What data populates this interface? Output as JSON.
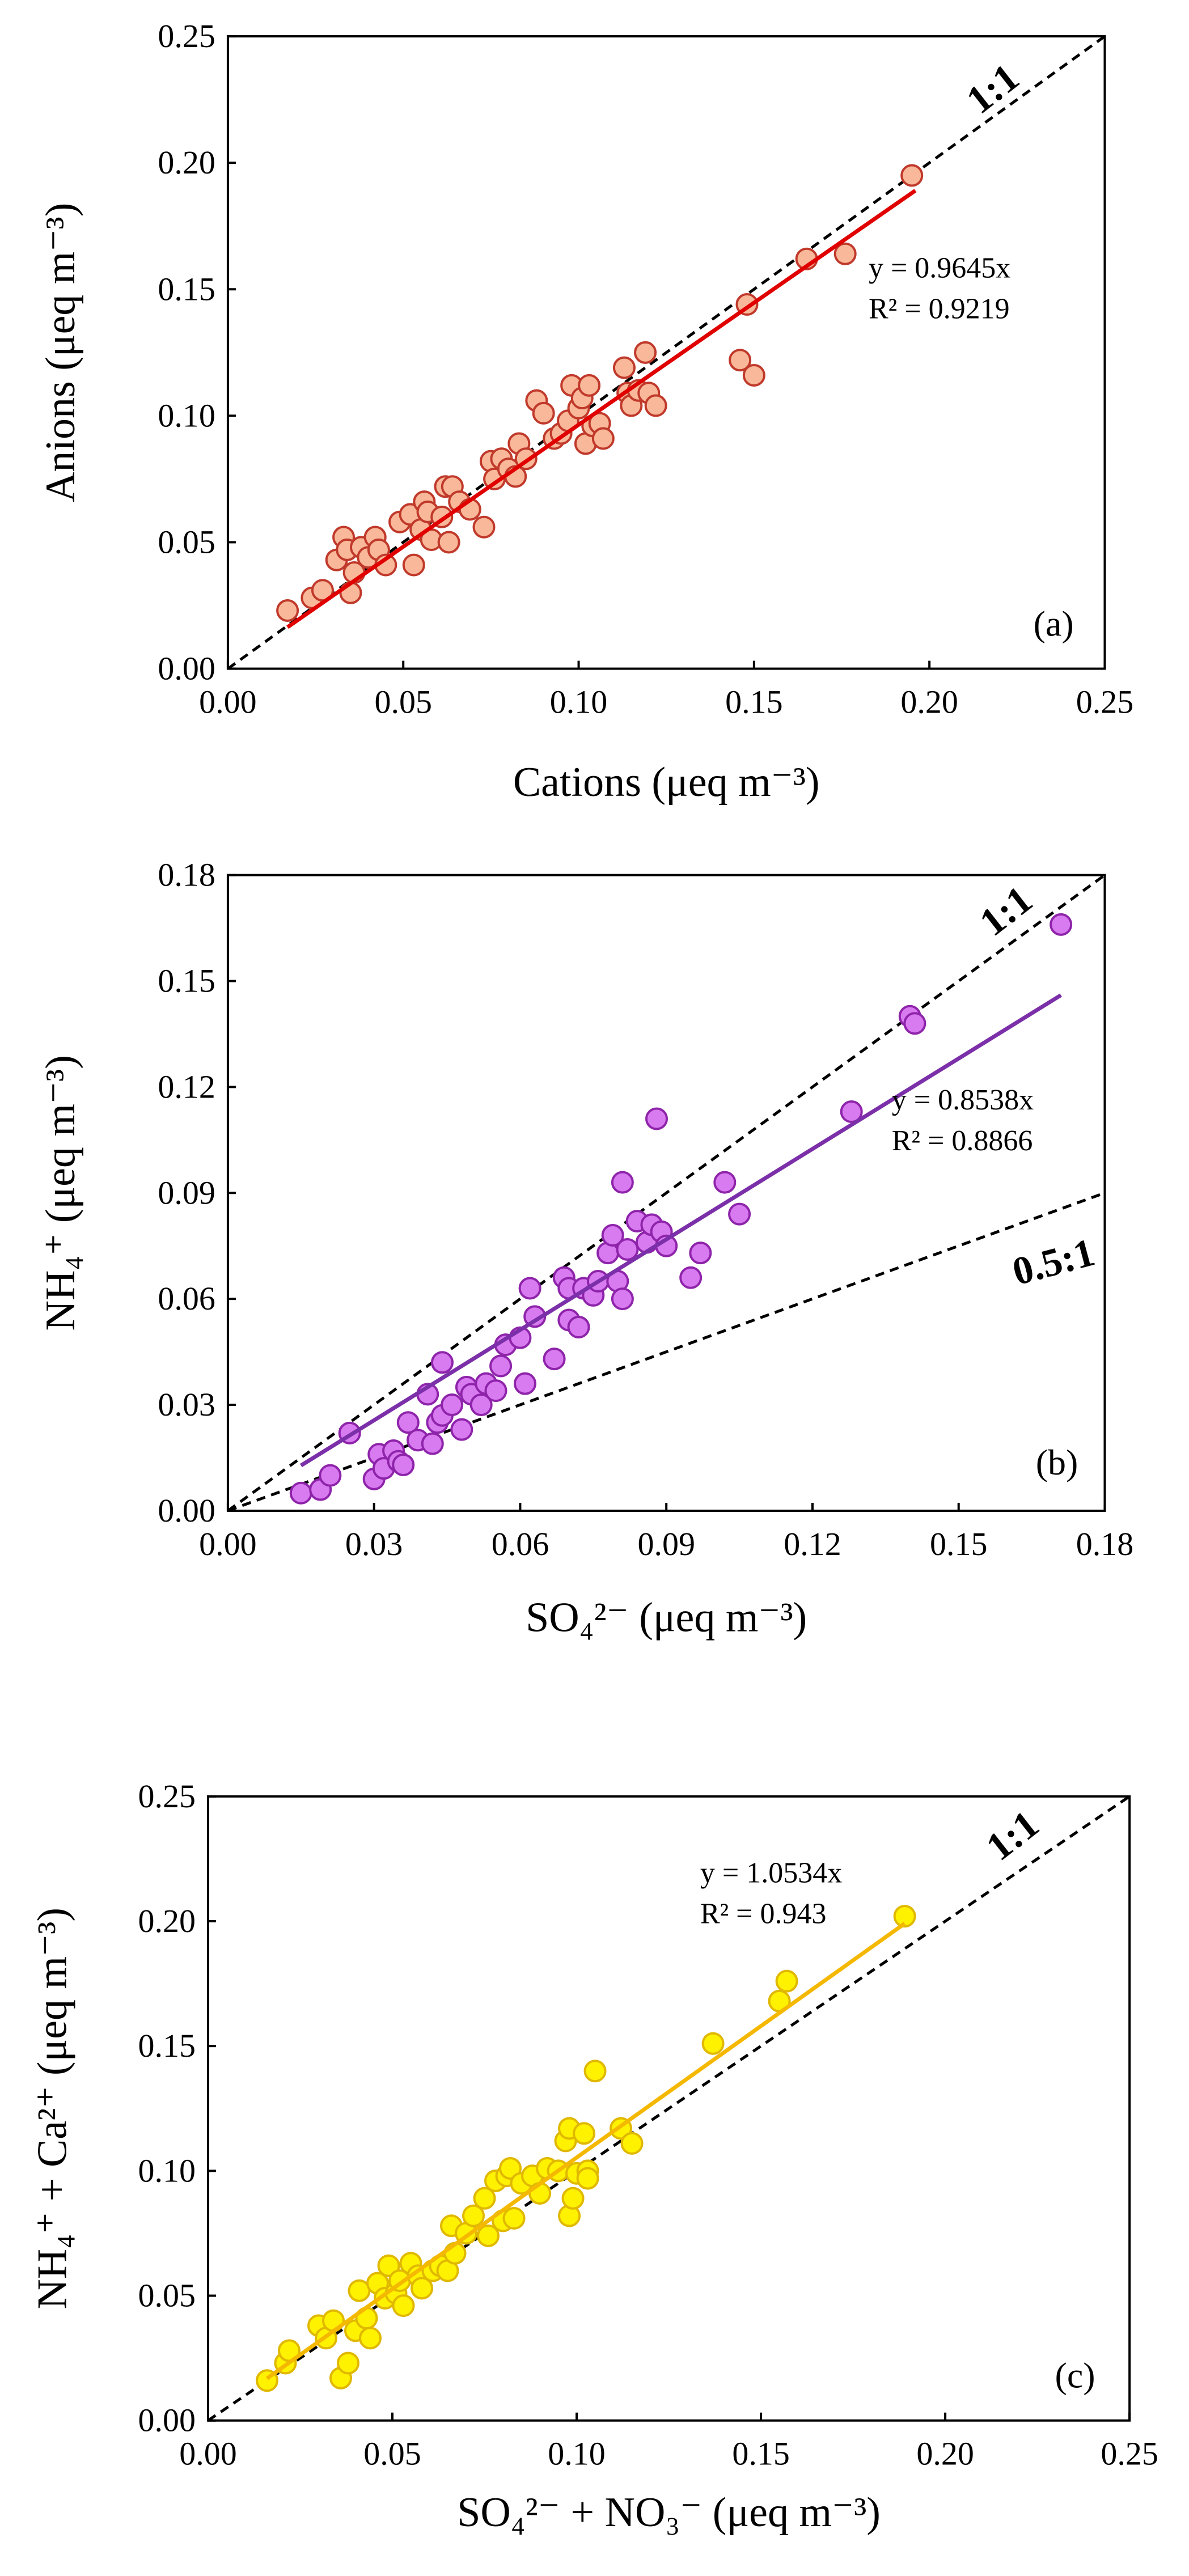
{
  "chart_data": [
    {
      "type": "scatter",
      "panel_tag": "(a)",
      "xlabel": "Cations (μeq m⁻³)",
      "ylabel": "Anions (μeq m⁻³)",
      "xlim": [
        0,
        0.25
      ],
      "ylim": [
        0,
        0.25
      ],
      "x_ticks": [
        "0.00",
        "0.05",
        "0.10",
        "0.15",
        "0.20",
        "0.25"
      ],
      "y_ticks": [
        "0.00",
        "0.05",
        "0.10",
        "0.15",
        "0.20",
        "0.25"
      ],
      "marker_fill": "#FAB89A",
      "marker_edge": "#C0392B",
      "fit": {
        "slope": 0.9645,
        "x_range": [
          0.017,
          0.196
        ],
        "color": "#E00000",
        "equation": "y = 0.9645x",
        "r2": "R² = 0.9219"
      },
      "reference_lines": [
        {
          "slope": 1,
          "label": "1:1"
        }
      ],
      "points": [
        [
          0.017,
          0.023
        ],
        [
          0.024,
          0.028
        ],
        [
          0.027,
          0.031
        ],
        [
          0.031,
          0.043
        ],
        [
          0.033,
          0.052
        ],
        [
          0.034,
          0.047
        ],
        [
          0.035,
          0.03
        ],
        [
          0.036,
          0.038
        ],
        [
          0.038,
          0.048
        ],
        [
          0.04,
          0.044
        ],
        [
          0.042,
          0.052
        ],
        [
          0.043,
          0.047
        ],
        [
          0.045,
          0.041
        ],
        [
          0.049,
          0.058
        ],
        [
          0.052,
          0.061
        ],
        [
          0.053,
          0.041
        ],
        [
          0.055,
          0.055
        ],
        [
          0.056,
          0.066
        ],
        [
          0.057,
          0.062
        ],
        [
          0.058,
          0.051
        ],
        [
          0.061,
          0.06
        ],
        [
          0.062,
          0.072
        ],
        [
          0.063,
          0.05
        ],
        [
          0.064,
          0.072
        ],
        [
          0.066,
          0.066
        ],
        [
          0.069,
          0.063
        ],
        [
          0.073,
          0.056
        ],
        [
          0.075,
          0.082
        ],
        [
          0.076,
          0.075
        ],
        [
          0.078,
          0.083
        ],
        [
          0.08,
          0.079
        ],
        [
          0.082,
          0.076
        ],
        [
          0.083,
          0.089
        ],
        [
          0.085,
          0.083
        ],
        [
          0.088,
          0.106
        ],
        [
          0.09,
          0.101
        ],
        [
          0.093,
          0.091
        ],
        [
          0.095,
          0.093
        ],
        [
          0.097,
          0.098
        ],
        [
          0.098,
          0.112
        ],
        [
          0.1,
          0.103
        ],
        [
          0.101,
          0.107
        ],
        [
          0.102,
          0.089
        ],
        [
          0.103,
          0.112
        ],
        [
          0.104,
          0.096
        ],
        [
          0.106,
          0.097
        ],
        [
          0.107,
          0.091
        ],
        [
          0.113,
          0.119
        ],
        [
          0.114,
          0.109
        ],
        [
          0.115,
          0.104
        ],
        [
          0.117,
          0.11
        ],
        [
          0.119,
          0.125
        ],
        [
          0.12,
          0.109
        ],
        [
          0.122,
          0.104
        ],
        [
          0.146,
          0.122
        ],
        [
          0.148,
          0.144
        ],
        [
          0.15,
          0.116
        ],
        [
          0.165,
          0.162
        ],
        [
          0.176,
          0.164
        ],
        [
          0.195,
          0.195
        ]
      ]
    },
    {
      "type": "scatter",
      "panel_tag": "(b)",
      "xlabel": "SO₄²⁻  (μeq m⁻³)",
      "ylabel": "NH₄⁺  (μeq m⁻³)",
      "xlim": [
        0,
        0.18
      ],
      "ylim": [
        0,
        0.18
      ],
      "x_ticks": [
        "0.00",
        "0.03",
        "0.06",
        "0.09",
        "0.12",
        "0.15",
        "0.18"
      ],
      "y_ticks": [
        "0.00",
        "0.03",
        "0.06",
        "0.09",
        "0.12",
        "0.15",
        "0.18"
      ],
      "marker_fill": "#D97BF0",
      "marker_edge": "#8E24AA",
      "fit": {
        "slope": 0.8538,
        "x_range": [
          0.015,
          0.171
        ],
        "color": "#7B2FA8",
        "equation": "y = 0.8538x",
        "r2": "R² = 0.8866"
      },
      "reference_lines": [
        {
          "slope": 1,
          "label": "1:1"
        },
        {
          "slope": 0.5,
          "label": "0.5:1"
        }
      ],
      "points": [
        [
          0.015,
          0.005
        ],
        [
          0.019,
          0.006
        ],
        [
          0.021,
          0.01
        ],
        [
          0.025,
          0.022
        ],
        [
          0.03,
          0.009
        ],
        [
          0.031,
          0.016
        ],
        [
          0.032,
          0.012
        ],
        [
          0.034,
          0.017
        ],
        [
          0.035,
          0.014
        ],
        [
          0.036,
          0.013
        ],
        [
          0.037,
          0.025
        ],
        [
          0.039,
          0.02
        ],
        [
          0.041,
          0.033
        ],
        [
          0.042,
          0.019
        ],
        [
          0.043,
          0.025
        ],
        [
          0.044,
          0.027
        ],
        [
          0.044,
          0.042
        ],
        [
          0.046,
          0.03
        ],
        [
          0.048,
          0.023
        ],
        [
          0.049,
          0.035
        ],
        [
          0.05,
          0.033
        ],
        [
          0.052,
          0.03
        ],
        [
          0.053,
          0.036
        ],
        [
          0.055,
          0.034
        ],
        [
          0.056,
          0.041
        ],
        [
          0.057,
          0.047
        ],
        [
          0.06,
          0.049
        ],
        [
          0.061,
          0.036
        ],
        [
          0.062,
          0.063
        ],
        [
          0.063,
          0.055
        ],
        [
          0.067,
          0.043
        ],
        [
          0.069,
          0.066
        ],
        [
          0.07,
          0.063
        ],
        [
          0.07,
          0.054
        ],
        [
          0.072,
          0.052
        ],
        [
          0.073,
          0.063
        ],
        [
          0.075,
          0.061
        ],
        [
          0.076,
          0.065
        ],
        [
          0.078,
          0.073
        ],
        [
          0.079,
          0.078
        ],
        [
          0.08,
          0.065
        ],
        [
          0.081,
          0.093
        ],
        [
          0.081,
          0.06
        ],
        [
          0.082,
          0.074
        ],
        [
          0.084,
          0.082
        ],
        [
          0.086,
          0.076
        ],
        [
          0.087,
          0.081
        ],
        [
          0.088,
          0.111
        ],
        [
          0.089,
          0.079
        ],
        [
          0.09,
          0.075
        ],
        [
          0.095,
          0.066
        ],
        [
          0.097,
          0.073
        ],
        [
          0.102,
          0.093
        ],
        [
          0.105,
          0.084
        ],
        [
          0.128,
          0.113
        ],
        [
          0.14,
          0.14
        ],
        [
          0.141,
          0.138
        ],
        [
          0.171,
          0.166
        ]
      ]
    },
    {
      "type": "scatter",
      "panel_tag": "(c)",
      "xlabel": "SO₄²⁻ + NO₃⁻ (μeq m⁻³)",
      "ylabel": "NH₄⁺ + Ca²⁺ (μeq m⁻³)",
      "xlim": [
        0,
        0.25
      ],
      "ylim": [
        0,
        0.25
      ],
      "x_ticks": [
        "0.00",
        "0.05",
        "0.10",
        "0.15",
        "0.20",
        "0.25"
      ],
      "y_ticks": [
        "0.00",
        "0.05",
        "0.10",
        "0.15",
        "0.20",
        "0.25"
      ],
      "marker_fill": "#FFF200",
      "marker_edge": "#E0B800",
      "fit": {
        "slope": 1.0534,
        "x_range": [
          0.016,
          0.189
        ],
        "color": "#F5B800",
        "equation": "y = 1.0534x",
        "r2": "R² = 0.943"
      },
      "reference_lines": [
        {
          "slope": 1,
          "label": "1:1"
        }
      ],
      "points": [
        [
          0.016,
          0.016
        ],
        [
          0.021,
          0.023
        ],
        [
          0.022,
          0.028
        ],
        [
          0.03,
          0.038
        ],
        [
          0.032,
          0.033
        ],
        [
          0.034,
          0.04
        ],
        [
          0.036,
          0.017
        ],
        [
          0.038,
          0.023
        ],
        [
          0.04,
          0.036
        ],
        [
          0.041,
          0.052
        ],
        [
          0.043,
          0.041
        ],
        [
          0.044,
          0.033
        ],
        [
          0.046,
          0.055
        ],
        [
          0.048,
          0.049
        ],
        [
          0.049,
          0.062
        ],
        [
          0.051,
          0.051
        ],
        [
          0.052,
          0.056
        ],
        [
          0.053,
          0.046
        ],
        [
          0.055,
          0.063
        ],
        [
          0.057,
          0.058
        ],
        [
          0.058,
          0.053
        ],
        [
          0.061,
          0.06
        ],
        [
          0.063,
          0.062
        ],
        [
          0.065,
          0.06
        ],
        [
          0.066,
          0.078
        ],
        [
          0.067,
          0.067
        ],
        [
          0.07,
          0.075
        ],
        [
          0.072,
          0.082
        ],
        [
          0.075,
          0.089
        ],
        [
          0.076,
          0.074
        ],
        [
          0.078,
          0.096
        ],
        [
          0.08,
          0.08
        ],
        [
          0.081,
          0.098
        ],
        [
          0.082,
          0.101
        ],
        [
          0.083,
          0.081
        ],
        [
          0.085,
          0.095
        ],
        [
          0.088,
          0.098
        ],
        [
          0.09,
          0.091
        ],
        [
          0.092,
          0.101
        ],
        [
          0.095,
          0.1
        ],
        [
          0.097,
          0.112
        ],
        [
          0.098,
          0.117
        ],
        [
          0.098,
          0.082
        ],
        [
          0.099,
          0.089
        ],
        [
          0.1,
          0.099
        ],
        [
          0.102,
          0.115
        ],
        [
          0.103,
          0.1
        ],
        [
          0.103,
          0.097
        ],
        [
          0.105,
          0.14
        ],
        [
          0.112,
          0.117
        ],
        [
          0.115,
          0.111
        ],
        [
          0.137,
          0.151
        ],
        [
          0.155,
          0.168
        ],
        [
          0.157,
          0.176
        ],
        [
          0.189,
          0.202
        ]
      ]
    }
  ]
}
